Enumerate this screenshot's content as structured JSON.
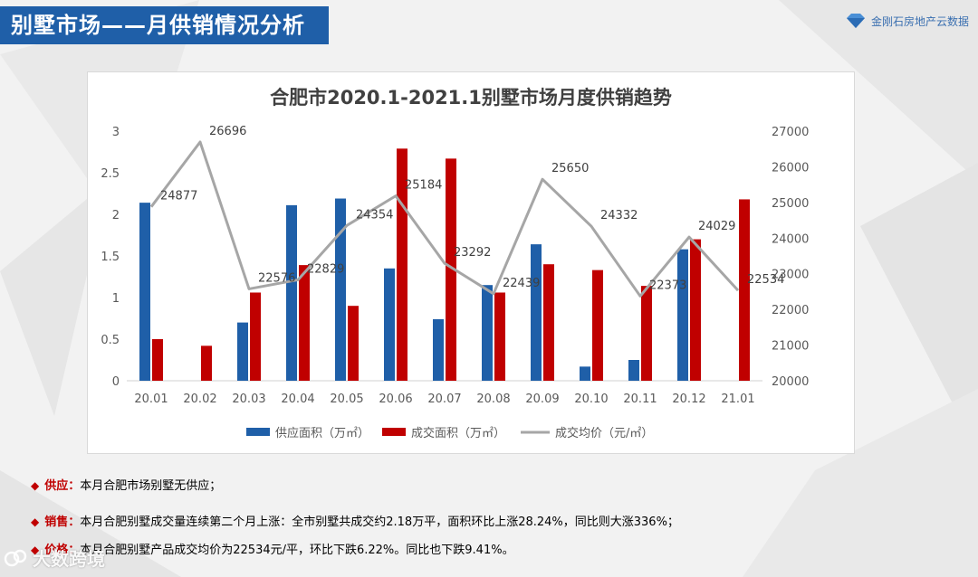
{
  "header": {
    "title": "别墅市场——月供销情况分析"
  },
  "logo": {
    "text": "金刚石房地产云数据",
    "icon": "diamond-logo-icon"
  },
  "chart_data": {
    "type": "bar",
    "title": "合肥市2020.1-2021.1别墅市场月度供销趋势",
    "categories": [
      "20.01",
      "20.02",
      "20.03",
      "20.04",
      "20.05",
      "20.06",
      "20.07",
      "20.08",
      "20.09",
      "20.10",
      "20.11",
      "20.12",
      "21.01"
    ],
    "series": [
      {
        "name": "供应面积（万㎡）",
        "type": "bar",
        "axis": "left",
        "color": "#1f5fa8",
        "values": [
          2.14,
          0,
          0.7,
          2.11,
          2.19,
          1.35,
          0.74,
          1.15,
          1.64,
          0.17,
          0.25,
          1.58,
          0
        ]
      },
      {
        "name": "成交面积（万㎡）",
        "type": "bar",
        "axis": "left",
        "color": "#c00000",
        "values": [
          0.5,
          0.42,
          1.06,
          1.39,
          0.9,
          2.79,
          2.67,
          1.06,
          1.4,
          1.33,
          1.14,
          1.7,
          2.18
        ]
      },
      {
        "name": "成交均价（元/㎡）",
        "type": "line",
        "axis": "right",
        "color": "#a6a6a6",
        "values": [
          24877,
          26696,
          22576,
          22829,
          24354,
          25184,
          23292,
          22439,
          25650,
          24332,
          22373,
          24029,
          22534
        ],
        "labels": [
          "24877",
          "26696",
          "22576",
          "22829",
          "24354",
          "25184",
          "23292",
          "22439",
          "25650",
          "24332",
          "22373",
          "24029",
          "22534"
        ]
      }
    ],
    "ylim": [
      0,
      3
    ],
    "yticks": [
      "0",
      "0.5",
      "1",
      "1.5",
      "2",
      "2.5",
      "3"
    ],
    "y2lim": [
      20000,
      27000
    ],
    "y2ticks": [
      "20000",
      "21000",
      "22000",
      "23000",
      "24000",
      "25000",
      "26000",
      "27000"
    ],
    "legend": "bottom"
  },
  "notes": [
    {
      "label": "供应：",
      "text": "本月合肥市场别墅无供应；"
    },
    {
      "label": "销售：",
      "text": "本月合肥别墅成交量连续第二个月上涨：全市别墅共成交约2.18万平，面积环比上涨28.24%，同比则大涨336%；"
    },
    {
      "label": "价格：",
      "text": "本月合肥别墅产品成交均价为22534元/平，环比下跌6.22%。同比也下跌9.41%。"
    }
  ],
  "watermark": {
    "text": "大数跨境"
  }
}
